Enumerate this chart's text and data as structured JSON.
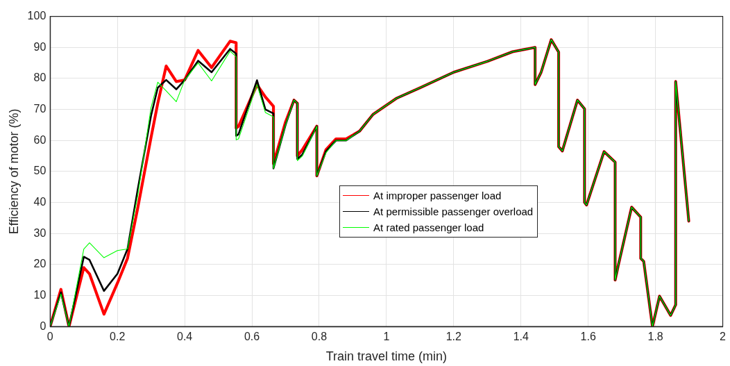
{
  "chart_data": {
    "type": "line",
    "xlabel": "Train travel time (min)",
    "ylabel": "Efficiency of motor (%)",
    "x": [
      0,
      0.032,
      0.056,
      0.1,
      0.117,
      0.16,
      0.2,
      0.23,
      0.26,
      0.3,
      0.32,
      0.345,
      0.375,
      0.4,
      0.44,
      0.48,
      0.535,
      0.553,
      0.553,
      0.56,
      0.615,
      0.64,
      0.664,
      0.664,
      0.7,
      0.725,
      0.735,
      0.735,
      0.75,
      0.793,
      0.793,
      0.82,
      0.85,
      0.88,
      0.92,
      0.96,
      1.03,
      1.1,
      1.2,
      1.3,
      1.375,
      1.442,
      1.442,
      1.46,
      1.49,
      1.512,
      1.512,
      1.523,
      1.568,
      1.589,
      1.589,
      1.595,
      1.647,
      1.68,
      1.68,
      1.69,
      1.729,
      1.756,
      1.756,
      1.765,
      1.791,
      1.812,
      1.845,
      1.86,
      1.86,
      1.899
    ],
    "series": [
      {
        "name": "At improper passenger load",
        "color": "#ff0000",
        "values": [
          0,
          12,
          0,
          19,
          17,
          4,
          14,
          22,
          38,
          61,
          72,
          84,
          79,
          79.5,
          89,
          83.5,
          92,
          91.5,
          64,
          64.5,
          78,
          74,
          71,
          52.5,
          66,
          73,
          72,
          55,
          57,
          64.6,
          48.6,
          57,
          60.5,
          60.5,
          63,
          68.4,
          73.6,
          77,
          82,
          85.5,
          88.6,
          90,
          78,
          82,
          92.5,
          88.5,
          58,
          56.6,
          73,
          70.2,
          40,
          39.2,
          56.4,
          53,
          15,
          20,
          38.5,
          35.3,
          22,
          21,
          0,
          9.8,
          3.6,
          7,
          79,
          34
        ]
      },
      {
        "name": "At permissible passenger overload",
        "color": "#000000",
        "values": [
          0,
          11,
          0,
          22.5,
          21.5,
          11.5,
          17,
          25,
          44,
          68,
          77,
          79.5,
          76.5,
          79.5,
          85.7,
          82,
          89.5,
          88,
          61.5,
          62,
          79.4,
          70,
          68.7,
          51,
          65,
          73,
          72,
          54,
          55.5,
          64.6,
          48.6,
          56.5,
          60,
          60,
          63,
          68.4,
          73.6,
          77,
          82,
          85.5,
          88.6,
          90,
          78,
          82,
          92.5,
          88.5,
          58,
          56.6,
          73,
          70.2,
          40,
          39.2,
          56.4,
          53,
          15,
          20,
          38.5,
          35.3,
          22,
          21,
          0,
          9.8,
          3.6,
          7,
          79,
          34
        ]
      },
      {
        "name": "At rated passenger load",
        "color": "#00ff00",
        "values": [
          0,
          10.5,
          0,
          25,
          27,
          22.2,
          24.5,
          25,
          42,
          70.6,
          78.8,
          76,
          72.5,
          79.5,
          85,
          79.2,
          88.8,
          87,
          60.2,
          60.5,
          78,
          69,
          67.6,
          51,
          65,
          73,
          72,
          53.5,
          55,
          64.6,
          48.6,
          56,
          60,
          60,
          63,
          68.4,
          73.6,
          77,
          82,
          85.5,
          88.6,
          90,
          78,
          82,
          92.5,
          88.5,
          58,
          56.6,
          73,
          70.2,
          40,
          39.2,
          56.4,
          53,
          15,
          20,
          38.5,
          35.3,
          22,
          21,
          0,
          9.8,
          3.6,
          7,
          79,
          34
        ]
      }
    ],
    "xlim": [
      0,
      2
    ],
    "xticks": [
      0,
      0.2,
      0.4,
      0.6,
      0.8,
      1,
      1.2,
      1.4,
      1.6,
      1.8,
      2
    ],
    "ylim": [
      0,
      100
    ],
    "yticks": [
      0,
      10,
      20,
      30,
      40,
      50,
      60,
      70,
      80,
      90,
      100
    ],
    "grid": true,
    "legend": "center",
    "marker": "none",
    "line_style": "solid"
  }
}
